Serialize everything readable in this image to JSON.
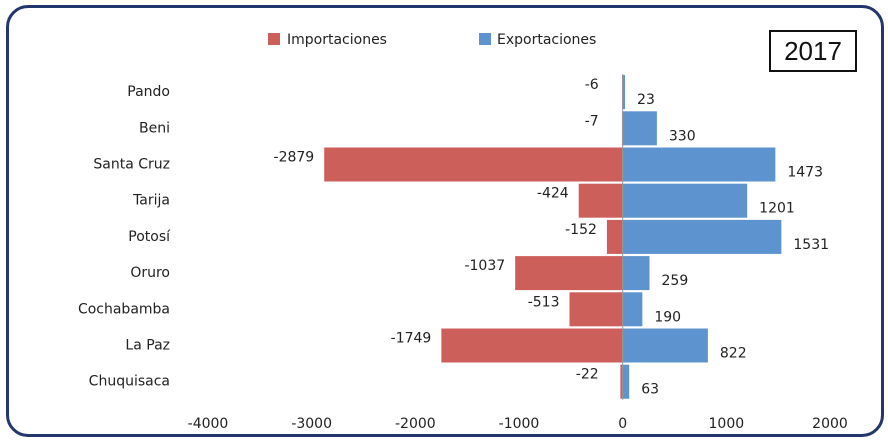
{
  "badge": {
    "year": "2017"
  },
  "chart_data": {
    "type": "bar",
    "orientation": "horizontal",
    "categories": [
      "Pando",
      "Beni",
      "Santa Cruz",
      "Tarija",
      "Potosí",
      "Oruro",
      "Cochabamba",
      "La Paz",
      "Chuquisaca"
    ],
    "series": [
      {
        "name": "Importaciones",
        "color": "#cd5f5b",
        "values": [
          -6,
          -7,
          -2879,
          -424,
          -152,
          -1037,
          -513,
          -1749,
          -22
        ]
      },
      {
        "name": "Exportaciones",
        "color": "#5d94cf",
        "values": [
          23,
          330,
          1473,
          1201,
          1531,
          259,
          190,
          822,
          63
        ]
      }
    ],
    "xlim": [
      -4000,
      2000
    ],
    "xticks": [
      "-4000",
      "-3000",
      "-2000",
      "-1000",
      "0",
      "1000",
      "2000"
    ],
    "legend": "top",
    "grid": false
  }
}
